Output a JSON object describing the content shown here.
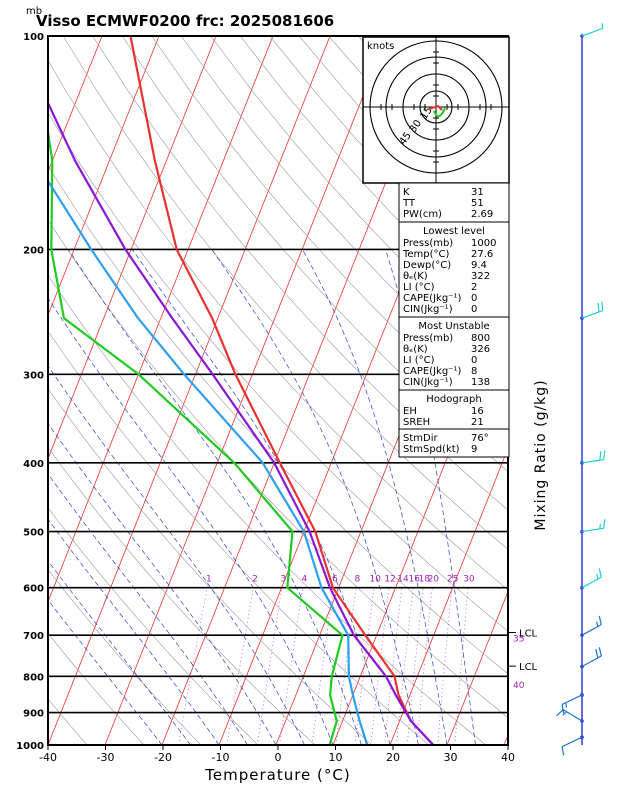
{
  "chart_data": {
    "type": "line",
    "title": "Visso ECMWF0200  frc: 2025081606",
    "pressure_unit": "mb",
    "xlabel": "Temperature (°C)",
    "right_label": "Mixing Ratio  (g/kg)",
    "xlim": [
      -40,
      40
    ],
    "ylim": [
      1000,
      100
    ],
    "x_ticks": [
      "-40",
      "-30",
      "-20",
      "-10",
      "0",
      "10",
      "20",
      "30",
      "40"
    ],
    "p_ticks": [
      "100",
      "200",
      "300",
      "400",
      "500",
      "600",
      "700",
      "800",
      "900",
      "1000"
    ],
    "mixing_ratio_labels": [
      "1",
      "2",
      "3",
      "4",
      "6",
      "8",
      "10",
      "12",
      "14",
      "16",
      "18",
      "20",
      "25",
      "30"
    ],
    "theta_e_labels": [
      "35",
      "40"
    ],
    "lcl_labels": [
      {
        "label": "LCL",
        "p": 694
      },
      {
        "label": "LCL",
        "p": 774
      }
    ],
    "series": [
      {
        "name": "Temperature",
        "color": "#e8322e",
        "points": [
          [
            1000,
            27.6
          ],
          [
            925,
            22
          ],
          [
            850,
            18
          ],
          [
            800,
            16
          ],
          [
            700,
            8
          ],
          [
            600,
            -1
          ],
          [
            500,
            -8
          ],
          [
            400,
            -19
          ],
          [
            300,
            -33
          ],
          [
            250,
            -41
          ],
          [
            200,
            -52
          ],
          [
            150,
            -62
          ],
          [
            100,
            -75
          ]
        ]
      },
      {
        "name": "Dewpoint",
        "color": "#1fcb1f",
        "points": [
          [
            1000,
            9.4
          ],
          [
            925,
            9
          ],
          [
            850,
            6
          ],
          [
            800,
            5
          ],
          [
            700,
            4
          ],
          [
            600,
            -9
          ],
          [
            500,
            -12
          ],
          [
            400,
            -27
          ],
          [
            300,
            -50
          ],
          [
            250,
            -67
          ],
          [
            200,
            -74
          ],
          [
            150,
            -80
          ],
          [
            100,
            -92
          ]
        ]
      },
      {
        "name": "Parcel",
        "color": "#8a17d8",
        "points": [
          [
            1000,
            27.6
          ],
          [
            925,
            22
          ],
          [
            850,
            17.5
          ],
          [
            800,
            14.5
          ],
          [
            700,
            6
          ],
          [
            600,
            -1.5
          ],
          [
            500,
            -9
          ],
          [
            400,
            -20
          ],
          [
            300,
            -37
          ],
          [
            250,
            -48
          ],
          [
            200,
            -61
          ],
          [
            150,
            -76
          ],
          [
            100,
            -95
          ]
        ]
      },
      {
        "name": "Wet-bulb",
        "color": "#2e9ef0",
        "points": [
          [
            1000,
            16
          ],
          [
            925,
            13
          ],
          [
            850,
            10
          ],
          [
            800,
            8
          ],
          [
            700,
            5
          ],
          [
            600,
            -3
          ],
          [
            500,
            -10
          ],
          [
            400,
            -22
          ],
          [
            300,
            -42
          ],
          [
            250,
            -54
          ],
          [
            200,
            -67
          ],
          [
            150,
            -83
          ],
          [
            100,
            -101
          ]
        ]
      }
    ],
    "wind_barbs": [
      {
        "p": 100,
        "spd": 5
      },
      {
        "p": 250,
        "spd": 20
      },
      {
        "p": 400,
        "spd": 20
      },
      {
        "p": 500,
        "spd": 15
      },
      {
        "p": 600,
        "spd": 15
      },
      {
        "p": 700,
        "spd": 15
      },
      {
        "p": 775,
        "spd": 20
      },
      {
        "p": 850,
        "spd": 15
      },
      {
        "p": 925,
        "spd": 15
      },
      {
        "p": 975,
        "spd": 10
      }
    ]
  },
  "hodograph": {
    "unit_label": "knots",
    "ring_labels": [
      "15",
      "30",
      "45"
    ]
  },
  "indices": {
    "top": [
      {
        "label": "K",
        "value": "31"
      },
      {
        "label": "TT",
        "value": "51"
      },
      {
        "label": "PW(cm)",
        "value": "2.69"
      }
    ],
    "lowest_title": "Lowest level",
    "lowest": [
      {
        "label": "Press(mb)",
        "value": "1000"
      },
      {
        "label": "Temp(°C)",
        "value": "27.6"
      },
      {
        "label": "Dewp(°C)",
        "value": "9.4"
      },
      {
        "label": "θₑ(K)",
        "value": "322"
      },
      {
        "label": "LI (°C)",
        "value": "2"
      },
      {
        "label": "CAPE(Jkg⁻¹)",
        "value": "0"
      },
      {
        "label": "CIN(Jkg⁻¹)",
        "value": "0"
      }
    ],
    "unstable_title": "Most Unstable",
    "unstable": [
      {
        "label": "Press(mb)",
        "value": "800"
      },
      {
        "label": "θₑ(K)",
        "value": "326"
      },
      {
        "label": "LI (°C)",
        "value": "0"
      },
      {
        "label": "CAPE(Jkg⁻¹)",
        "value": "8"
      },
      {
        "label": "CIN(Jkg⁻¹)",
        "value": "138"
      }
    ],
    "hodo_title": "Hodograph",
    "hodo": [
      {
        "label": "EH",
        "value": "16"
      },
      {
        "label": "SREH",
        "value": "21"
      }
    ],
    "storm": [
      {
        "label": "StmDir",
        "value": "76°"
      },
      {
        "label": "StmSpd(kt)",
        "value": "9"
      }
    ]
  }
}
